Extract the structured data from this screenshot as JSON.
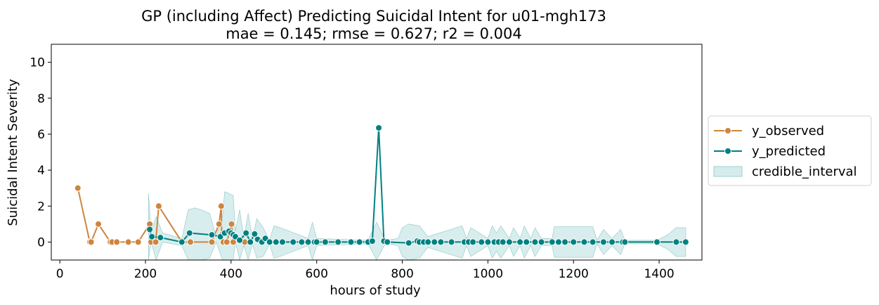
{
  "chart_data": {
    "type": "line",
    "title": "GP (including Affect) Predicting Suicidal Intent for u01-mgh173",
    "subtitle": "mae = 0.145; rmse = 0.627; r2 = 0.004",
    "xlabel": "hours of study",
    "ylabel": "Suicidal Intent Severity",
    "xlim": [
      -20,
      1500
    ],
    "ylim": [
      -1,
      11
    ],
    "xticks": [
      0,
      200,
      400,
      600,
      800,
      1000,
      1200,
      1400
    ],
    "yticks": [
      0,
      2,
      4,
      6,
      8,
      10
    ],
    "grid": false,
    "legend_position": "right, outside",
    "colors": {
      "y_observed": "#cd853f",
      "y_predicted": "#008080",
      "credible_interval": "#b2dcdc"
    },
    "series": [
      {
        "name": "y_observed",
        "x": [
          42,
          70,
          73,
          90,
          118,
          122,
          133,
          160,
          183,
          210,
          213,
          224,
          231,
          285,
          305,
          355,
          372,
          377,
          378,
          382,
          390,
          401,
          405,
          432
        ],
        "y": [
          3,
          0,
          0,
          1,
          0,
          0,
          0,
          0,
          0,
          1,
          0,
          0,
          2,
          0,
          0,
          0,
          1,
          2,
          0.4,
          0,
          0,
          1,
          0,
          0
        ]
      },
      {
        "name": "y_predicted",
        "x": [
          210,
          215,
          235,
          285,
          303,
          355,
          375,
          385,
          395,
          400,
          405,
          410,
          420,
          435,
          445,
          455,
          462,
          472,
          480,
          490,
          505,
          520,
          545,
          565,
          580,
          595,
          600,
          620,
          650,
          680,
          700,
          720,
          730,
          745,
          757,
          765,
          815,
          835,
          840,
          850,
          860,
          875,
          890,
          915,
          945,
          955,
          965,
          985,
          1000,
          1015,
          1025,
          1035,
          1050,
          1075,
          1090,
          1110,
          1125,
          1150,
          1165,
          1180,
          1200,
          1225,
          1245,
          1270,
          1290,
          1315,
          1320,
          1395,
          1440,
          1462
        ],
        "y": [
          0.7,
          0.3,
          0.25,
          0,
          0.5,
          0.4,
          0.3,
          0.5,
          0.6,
          0.5,
          0.4,
          0.3,
          0.1,
          0.5,
          0,
          0.45,
          0.15,
          0,
          0.2,
          0,
          0,
          0,
          0,
          0,
          0,
          0,
          0,
          0,
          0,
          0,
          0,
          0,
          0.05,
          6.35,
          0.05,
          0,
          -0.05,
          0.05,
          0,
          0,
          0,
          0,
          0,
          0,
          0,
          0,
          0,
          0,
          0,
          0,
          0,
          0,
          0,
          0,
          0,
          0,
          0,
          0,
          0,
          0,
          0,
          0,
          0,
          0,
          0,
          0,
          0,
          0,
          0,
          0
        ]
      },
      {
        "name": "credible_interval",
        "x": [
          207,
          213,
          225,
          240,
          285,
          300,
          315,
          330,
          350,
          365,
          380,
          385,
          395,
          405,
          410,
          420,
          430,
          440,
          450,
          460,
          475,
          490,
          500,
          515,
          580,
          590,
          600,
          720,
          740,
          760,
          790,
          800,
          815,
          840,
          860,
          940,
          950,
          960,
          1000,
          1010,
          1020,
          1030,
          1050,
          1060,
          1075,
          1085,
          1100,
          1110,
          1125,
          1150,
          1155,
          1245,
          1255,
          1270,
          1290,
          1310,
          1320,
          1395,
          1420,
          1440,
          1462
        ],
        "upper": [
          2.7,
          0.6,
          1.4,
          0.5,
          0.2,
          1.8,
          1.9,
          1.8,
          1.6,
          0.3,
          1.4,
          2.8,
          2.7,
          2.6,
          0.6,
          1.8,
          0.2,
          1.6,
          0.2,
          1.3,
          0.8,
          0.1,
          0.9,
          0.8,
          0.2,
          1.1,
          0.2,
          0.1,
          1.1,
          0.1,
          0.2,
          0.8,
          1.0,
          0.9,
          0.3,
          0.9,
          0.2,
          0.8,
          0.2,
          0.9,
          0.5,
          0.9,
          0.2,
          0.8,
          0.2,
          0.9,
          0.2,
          0.8,
          0.2,
          0.2,
          0.85,
          0.85,
          0.1,
          0.7,
          0.2,
          0.7,
          0.1,
          0.1,
          0.4,
          0.8,
          0.8
        ],
        "lower": [
          -1.0,
          0.0,
          -1.0,
          0.0,
          -0.2,
          -1.0,
          -1.0,
          -1.0,
          -0.9,
          0.0,
          -1.0,
          -1.0,
          -1.0,
          -1.0,
          0.0,
          -1.0,
          -0.2,
          -1.0,
          -0.1,
          -0.9,
          -0.8,
          -0.1,
          -0.9,
          -0.8,
          -0.2,
          -1.0,
          -0.2,
          -0.1,
          -1.0,
          -0.1,
          -0.2,
          -0.8,
          -1.0,
          -0.9,
          -0.3,
          -0.9,
          -0.2,
          -0.8,
          -0.2,
          -0.9,
          -0.5,
          -0.9,
          -0.2,
          -0.8,
          -0.2,
          -0.9,
          -0.2,
          -0.8,
          -0.2,
          -0.2,
          -0.85,
          -0.85,
          -0.1,
          -0.7,
          -0.2,
          -0.7,
          -0.1,
          -0.1,
          -0.4,
          -0.8,
          -0.8
        ]
      }
    ]
  }
}
